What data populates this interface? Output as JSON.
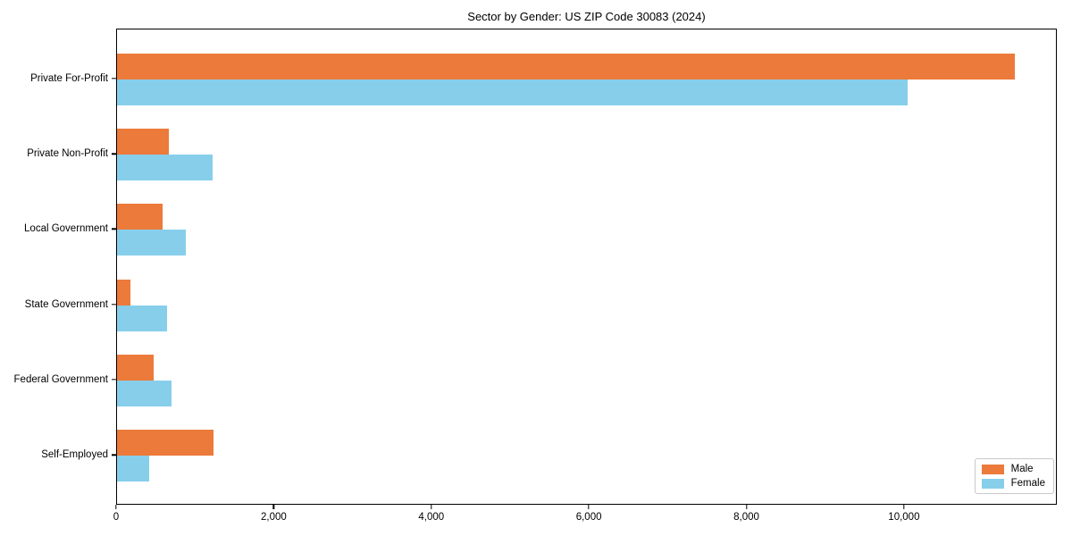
{
  "chart_data": {
    "type": "bar",
    "orientation": "horizontal",
    "title": "Sector by Gender: US ZIP Code 30083 (2024)",
    "categories": [
      "Private For-Profit",
      "Private Non-Profit",
      "Local Government",
      "State Government",
      "Federal Government",
      "Self-Employed"
    ],
    "series": [
      {
        "name": "Male",
        "color": "#eb7a3b",
        "values": [
          11400,
          660,
          580,
          170,
          465,
          1220
        ]
      },
      {
        "name": "Female",
        "color": "#87ceeb",
        "values": [
          10030,
          1210,
          870,
          630,
          690,
          410
        ]
      }
    ],
    "xlabel": "",
    "ylabel": "",
    "xlim": [
      0,
      11940
    ],
    "x_ticks": [
      0,
      2000,
      4000,
      6000,
      8000,
      10000
    ],
    "x_tick_labels": [
      "0",
      "2,000",
      "4,000",
      "6,000",
      "8,000",
      "10,000"
    ],
    "grid": false,
    "legend": {
      "position": "lower right",
      "entries": [
        "Male",
        "Female"
      ]
    }
  }
}
